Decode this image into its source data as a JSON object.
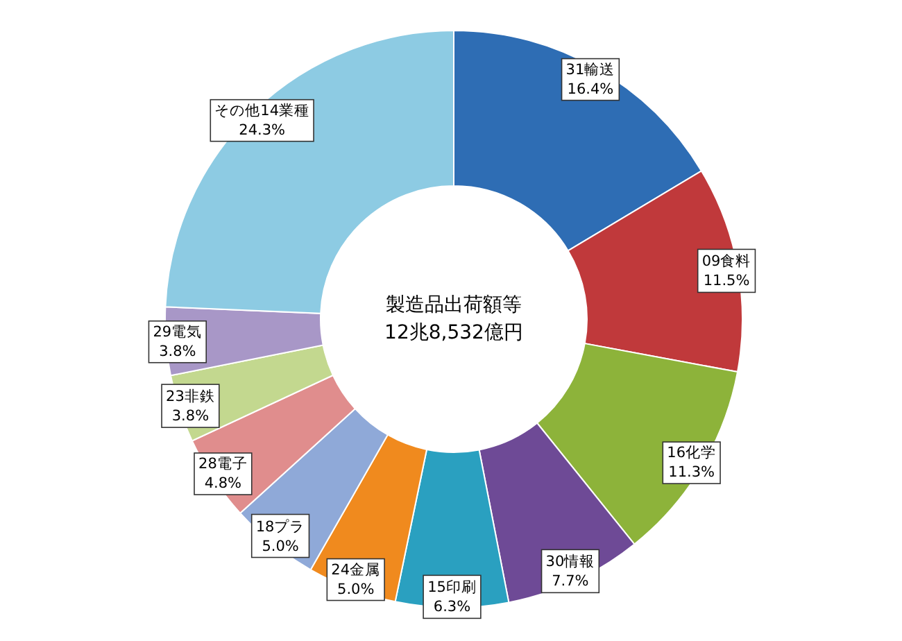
{
  "chart_data": {
    "type": "donut",
    "title": "製造品出荷額等",
    "subtitle": "12兆8,532億円",
    "categories": [
      "31輸送",
      "09食料",
      "16化学",
      "30情報",
      "15印刷",
      "24金属",
      "18プラ",
      "28電子",
      "23非鉄",
      "29電気",
      "その他14業種"
    ],
    "values": [
      16.4,
      11.5,
      11.3,
      7.7,
      6.3,
      5.0,
      5.0,
      4.8,
      3.8,
      3.8,
      24.3
    ],
    "value_labels": [
      "16.4%",
      "11.5%",
      "11.3%",
      "7.7%",
      "6.3%",
      "5.0%",
      "5.0%",
      "4.8%",
      "3.8%",
      "3.8%",
      "24.3%"
    ],
    "colors": [
      "#2e6db4",
      "#c0393b",
      "#8db33a",
      "#6e4a96",
      "#2aa0c0",
      "#f08a1e",
      "#8fa9d8",
      "#e08d8d",
      "#c3d88f",
      "#a897c7",
      "#8dcbe3"
    ],
    "legend": false
  }
}
